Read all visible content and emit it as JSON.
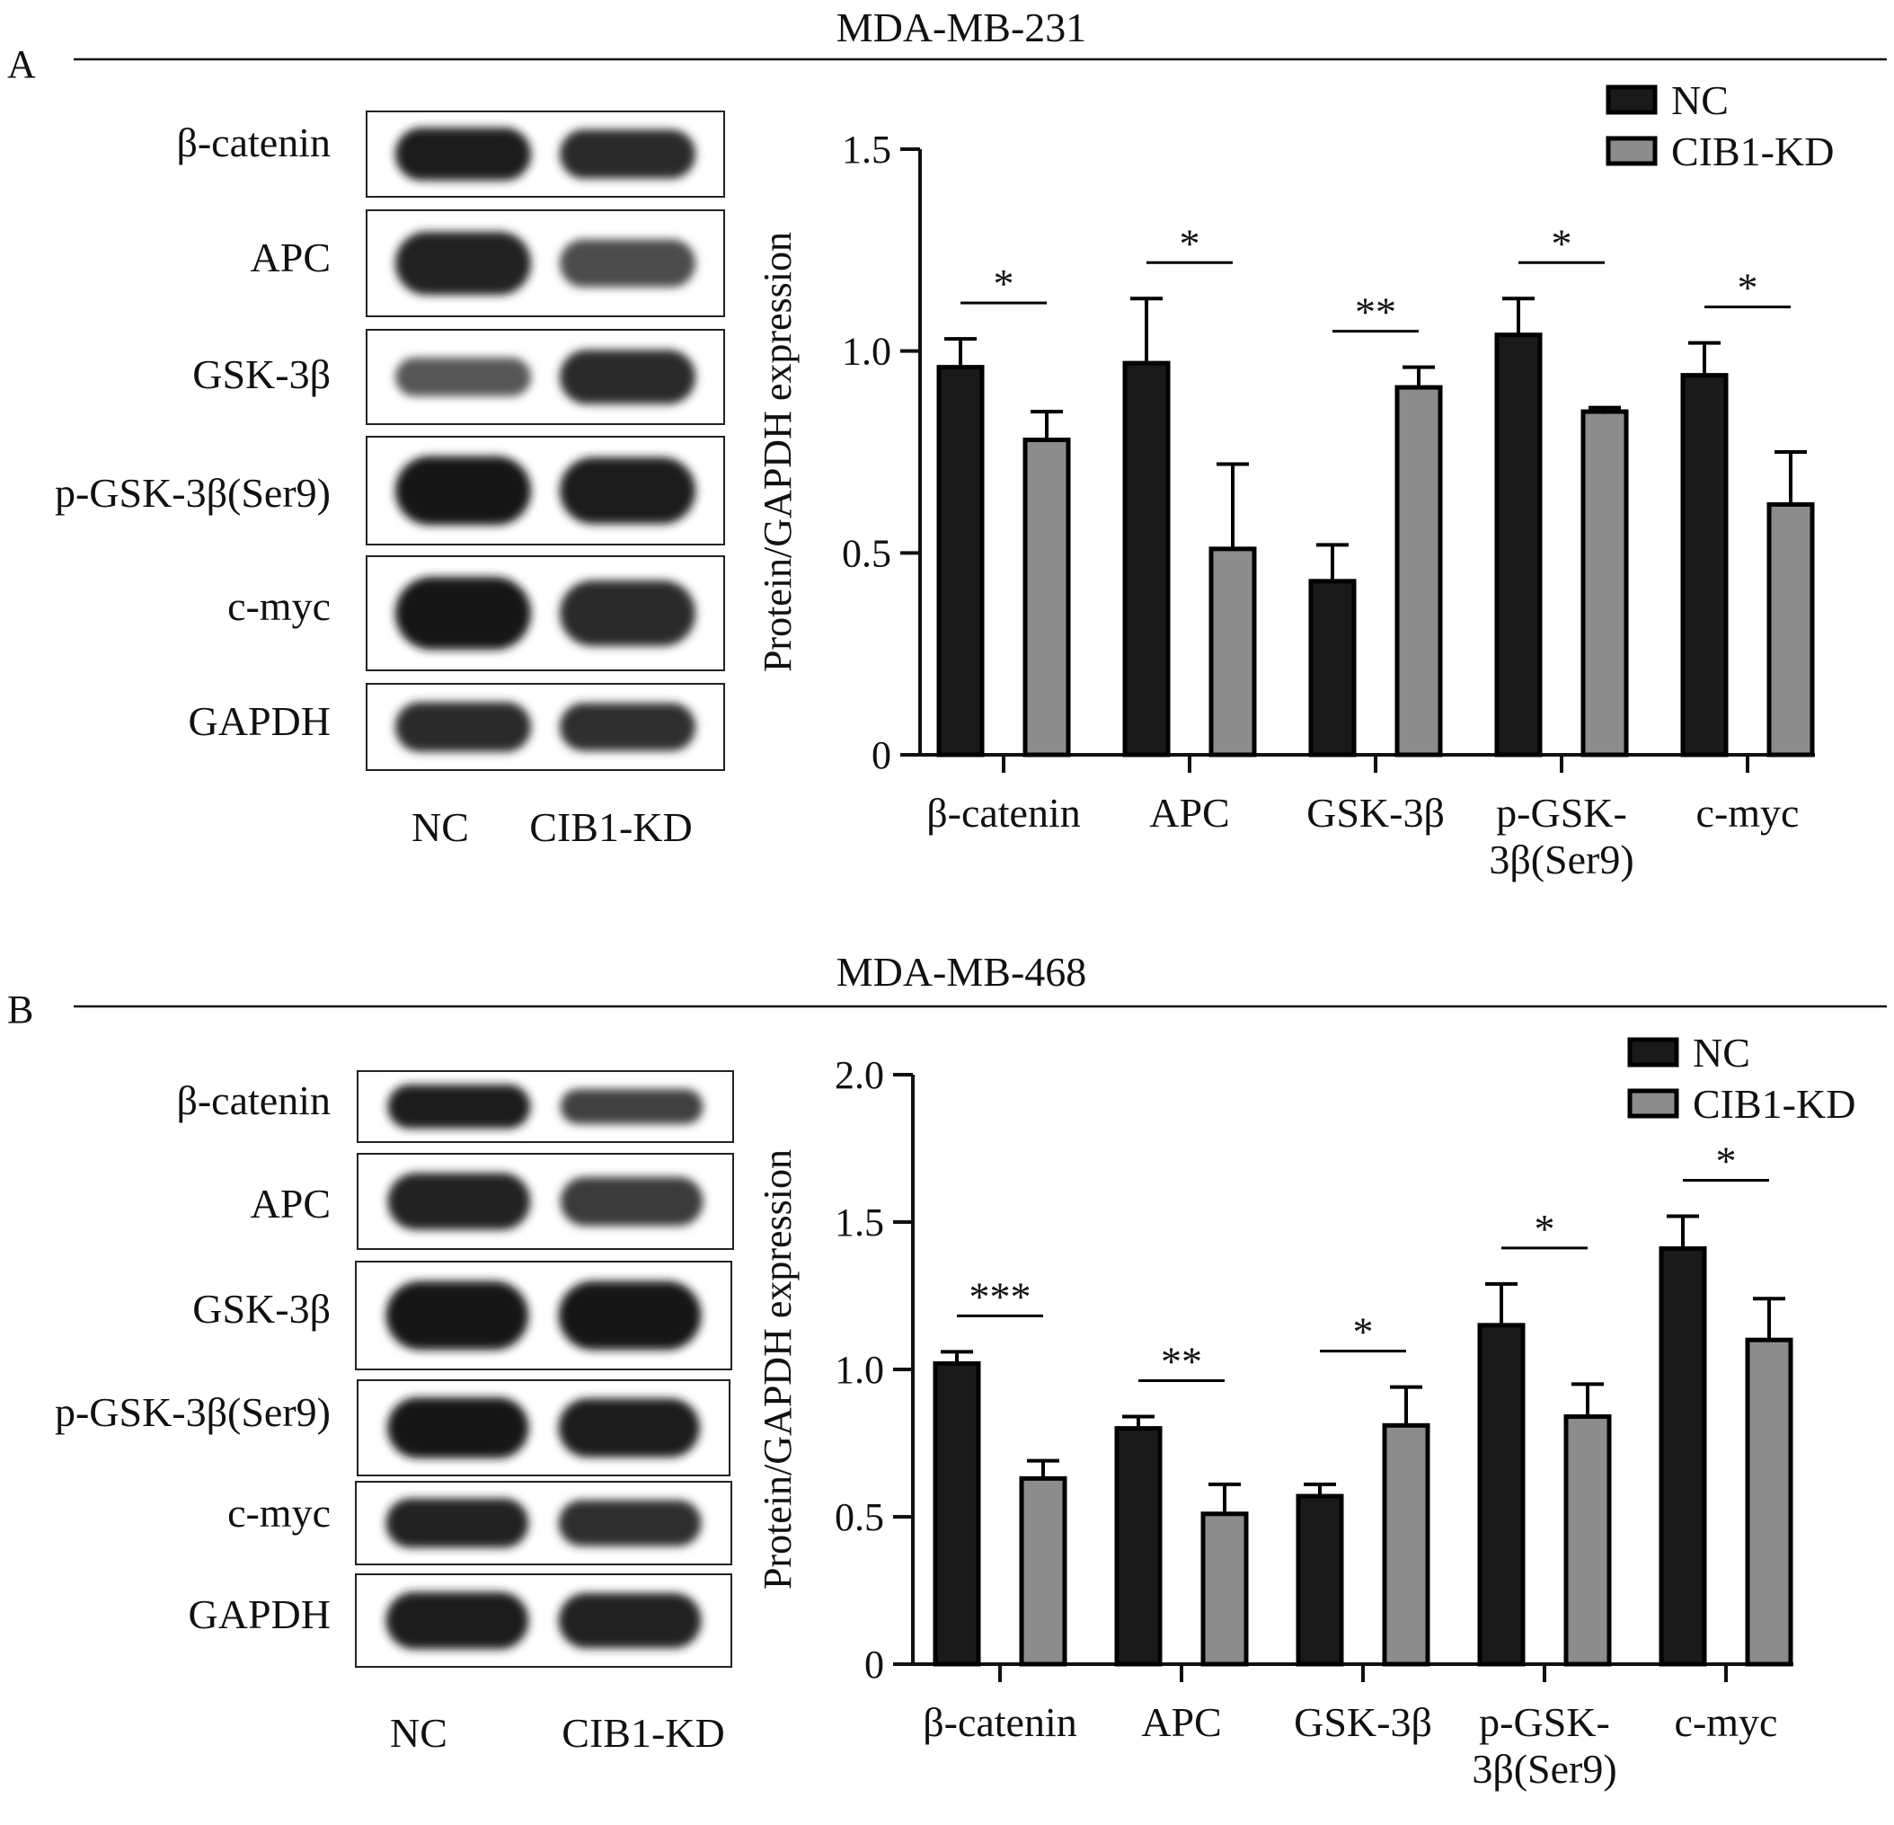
{
  "figure": {
    "colors": {
      "nc_fill": "#1a1a1a",
      "kd_fill": "#8c8c8c",
      "axis": "#111111",
      "background": "#ffffff"
    },
    "panels": [
      {
        "letter": "A",
        "cell_line": "MDA-MB-231",
        "blot": {
          "proteins": [
            "β-catenin",
            "APC",
            "GSK-3β",
            "p-GSK-3β(Ser9)",
            "c-myc",
            "GAPDH"
          ],
          "lane_labels": [
            "NC",
            "CIB1-KD"
          ],
          "band_intensity": [
            [
              0.95,
              0.85
            ],
            [
              0.9,
              0.55
            ],
            [
              0.45,
              0.85
            ],
            [
              1.0,
              0.95
            ],
            [
              1.0,
              0.85
            ],
            [
              0.85,
              0.8
            ]
          ]
        }
      },
      {
        "letter": "B",
        "cell_line": "MDA-MB-468",
        "blot": {
          "proteins": [
            "β-catenin",
            "APC",
            "GSK-3β",
            "p-GSK-3β(Ser9)",
            "c-myc",
            "GAPDH"
          ],
          "lane_labels": [
            "NC",
            "CIB1-KD"
          ],
          "band_intensity": [
            [
              0.95,
              0.65
            ],
            [
              0.9,
              0.7
            ],
            [
              1.0,
              1.0
            ],
            [
              1.0,
              0.95
            ],
            [
              0.9,
              0.8
            ],
            [
              0.95,
              0.9
            ]
          ]
        }
      }
    ]
  },
  "chart_data": [
    {
      "type": "bar",
      "title": "MDA-MB-231",
      "ylabel": "Protein/GAPDH expression",
      "xlabel": "",
      "ylim": [
        0,
        1.5
      ],
      "yticks": [
        0,
        0.5,
        1.0,
        1.5
      ],
      "ytick_labels": [
        "0",
        "0.5",
        "1.0",
        "1.5"
      ],
      "categories": [
        "β-catenin",
        "APC",
        "GSK-3β",
        "p-GSK-3β(Ser9)",
        "c-myc"
      ],
      "category_labels": [
        [
          "β-catenin"
        ],
        [
          "APC"
        ],
        [
          "GSK-3β"
        ],
        [
          "p-GSK-",
          "3β(Ser9)"
        ],
        [
          "c-myc"
        ]
      ],
      "series": [
        {
          "name": "NC",
          "values": [
            0.96,
            0.97,
            0.43,
            1.04,
            0.94
          ],
          "errors": [
            0.07,
            0.16,
            0.09,
            0.09,
            0.08
          ]
        },
        {
          "name": "CIB1-KD",
          "values": [
            0.78,
            0.51,
            0.91,
            0.85,
            0.62
          ],
          "errors": [
            0.07,
            0.21,
            0.05,
            0.01,
            0.13
          ]
        }
      ],
      "significance": [
        "*",
        "*",
        "**",
        "*",
        "*"
      ],
      "legend": "top-right",
      "grid": false
    },
    {
      "type": "bar",
      "title": "MDA-MB-468",
      "ylabel": "Protein/GAPDH expression",
      "xlabel": "",
      "ylim": [
        0,
        2.0
      ],
      "yticks": [
        0,
        0.5,
        1.0,
        1.5,
        2.0
      ],
      "ytick_labels": [
        "0",
        "0.5",
        "1.0",
        "1.5",
        "2.0"
      ],
      "categories": [
        "β-catenin",
        "APC",
        "GSK-3β",
        "p-GSK-3β(Ser9)",
        "c-myc"
      ],
      "category_labels": [
        [
          "β-catenin"
        ],
        [
          "APC"
        ],
        [
          "GSK-3β"
        ],
        [
          "p-GSK-",
          "3β(Ser9)"
        ],
        [
          "c-myc"
        ]
      ],
      "series": [
        {
          "name": "NC",
          "values": [
            1.02,
            0.8,
            0.57,
            1.15,
            1.41
          ],
          "errors": [
            0.04,
            0.04,
            0.04,
            0.14,
            0.11
          ]
        },
        {
          "name": "CIB1-KD",
          "values": [
            0.63,
            0.51,
            0.81,
            0.84,
            1.1
          ],
          "errors": [
            0.06,
            0.1,
            0.13,
            0.11,
            0.14
          ]
        }
      ],
      "significance": [
        "***",
        "**",
        "*",
        "*",
        "*"
      ],
      "legend": "top-right",
      "grid": false
    }
  ]
}
